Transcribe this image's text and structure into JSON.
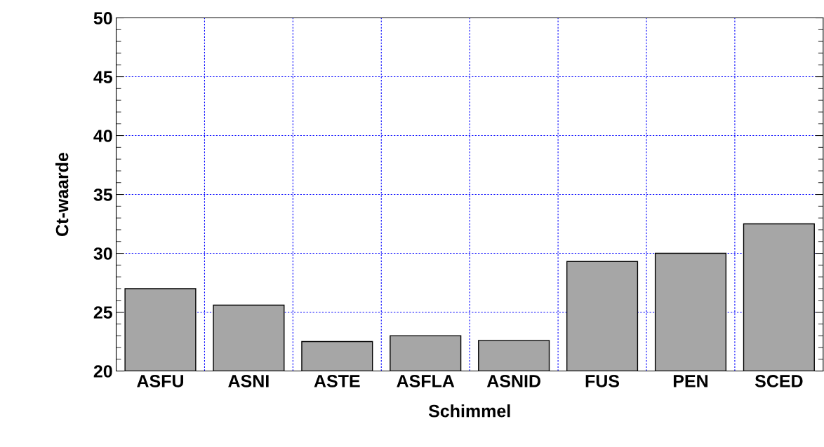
{
  "chart_data": {
    "type": "bar",
    "xlabel": "Schimmel",
    "ylabel": "Ct-waarde",
    "categories": [
      "ASFU",
      "ASNI",
      "ASTE",
      "ASFLA",
      "ASNID",
      "FUS",
      "PEN",
      "SCED"
    ],
    "values": [
      27.0,
      25.6,
      22.5,
      23.0,
      22.6,
      29.3,
      30.0,
      32.5
    ],
    "color": "#a6a6a6",
    "ylim": [
      20,
      50
    ],
    "yticks": [
      20,
      25,
      30,
      35,
      40,
      45,
      50
    ],
    "grid": true
  }
}
